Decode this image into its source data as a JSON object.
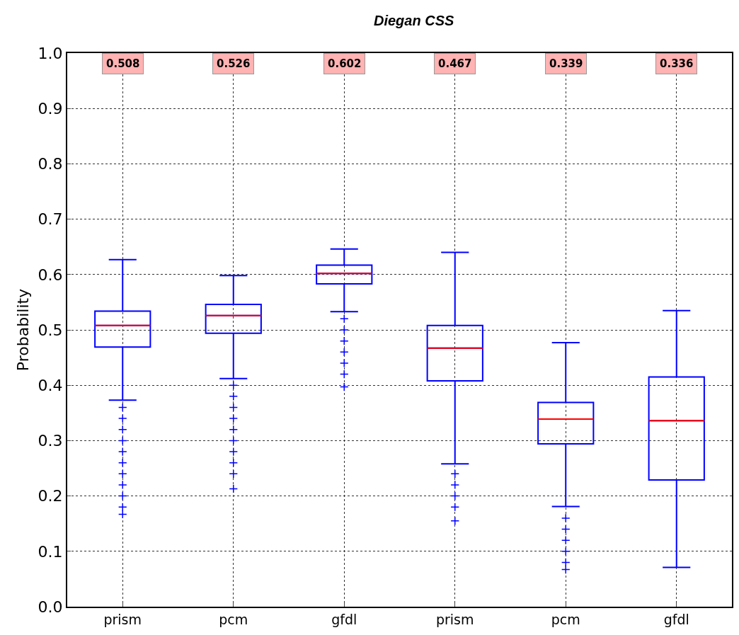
{
  "chart_data": {
    "type": "box",
    "title": "Diegan CSS",
    "ylabel": "Probability",
    "categories": [
      "prism",
      "pcm",
      "gfdl",
      "prism",
      "pcm",
      "gfdl"
    ],
    "color": "#0000ff",
    "boxes": [
      {
        "low": 0.373,
        "q1": 0.469,
        "median": 0.508,
        "q3": 0.534,
        "high": 0.627,
        "outliers": [
          0.36,
          0.34,
          0.32,
          0.3,
          0.28,
          0.26,
          0.24,
          0.22,
          0.2,
          0.18,
          0.167
        ]
      },
      {
        "low": 0.412,
        "q1": 0.494,
        "median": 0.526,
        "q3": 0.546,
        "high": 0.598,
        "outliers": [
          0.4,
          0.38,
          0.36,
          0.34,
          0.32,
          0.3,
          0.28,
          0.26,
          0.24,
          0.213
        ]
      },
      {
        "low": 0.533,
        "q1": 0.583,
        "median": 0.602,
        "q3": 0.617,
        "high": 0.646,
        "outliers": [
          0.52,
          0.5,
          0.48,
          0.46,
          0.44,
          0.42,
          0.397
        ]
      },
      {
        "low": 0.258,
        "q1": 0.408,
        "median": 0.467,
        "q3": 0.508,
        "high": 0.64,
        "outliers": [
          0.24,
          0.22,
          0.2,
          0.18,
          0.155
        ]
      },
      {
        "low": 0.181,
        "q1": 0.294,
        "median": 0.339,
        "q3": 0.369,
        "high": 0.477,
        "outliers": [
          0.16,
          0.14,
          0.12,
          0.1,
          0.08,
          0.067
        ]
      },
      {
        "low": 0.071,
        "q1": 0.229,
        "median": 0.336,
        "q3": 0.415,
        "high": 0.535
      }
    ],
    "annotations": [
      "0.508",
      "0.526",
      "0.602",
      "0.467",
      "0.339",
      "0.336"
    ],
    "ylim": [
      0.0,
      1.0
    ],
    "yticks": [
      {
        "value": 0,
        "label": "0.0"
      },
      0.1,
      0.2,
      0.3,
      0.4,
      0.5,
      0.6,
      0.7,
      0.8,
      0.9,
      {
        "value": 1,
        "label": "1.0"
      }
    ],
    "grid": true,
    "marker": "cross"
  }
}
